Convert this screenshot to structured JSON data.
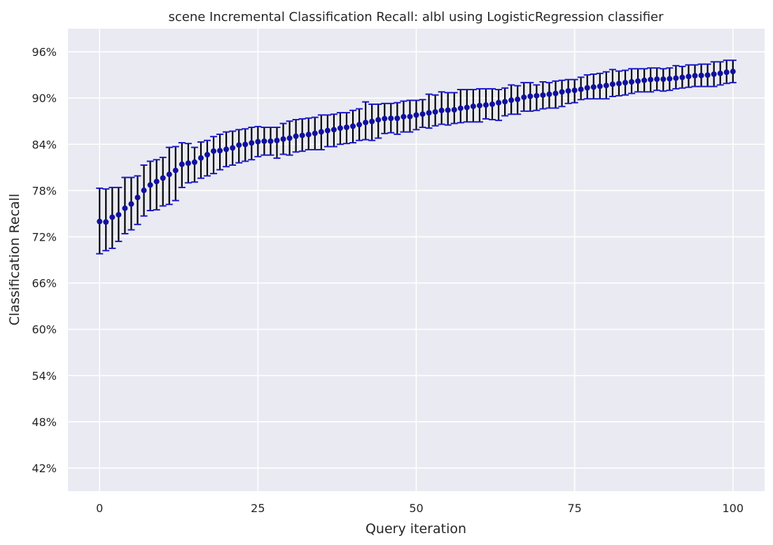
{
  "chart_data": {
    "type": "scatter",
    "title": "scene Incremental Classification Recall: albl using LogisticRegression classifier",
    "xlabel": "Query iteration",
    "ylabel": "Classification Recall",
    "x_ticks": [
      0,
      25,
      50,
      75,
      100
    ],
    "y_ticks": [
      0.42,
      0.48,
      0.54,
      0.6,
      0.66,
      0.72,
      0.78,
      0.84,
      0.9,
      0.96
    ],
    "y_tick_labels": [
      "42%",
      "48%",
      "54%",
      "60%",
      "66%",
      "72%",
      "78%",
      "84%",
      "90%",
      "96%"
    ],
    "xlim": [
      -5,
      105
    ],
    "ylim": [
      0.39,
      0.99
    ],
    "grid": true,
    "colors": {
      "background": "#eaeaf2",
      "grid": "#ffffff",
      "marker": "#1010a0",
      "errorbar": "#000000",
      "cap": "#1a1acc"
    },
    "series": [
      {
        "x": [
          0,
          1,
          2,
          3,
          4,
          5,
          6,
          7,
          8,
          9,
          10,
          11,
          12,
          13,
          14,
          15,
          16,
          17,
          18,
          19,
          20,
          21,
          22,
          23,
          24,
          25,
          26,
          27,
          28,
          29,
          30,
          31,
          32,
          33,
          34,
          35,
          36,
          37,
          38,
          39,
          40,
          41,
          42,
          43,
          44,
          45,
          46,
          47,
          48,
          49,
          50,
          51,
          52,
          53,
          54,
          55,
          56,
          57,
          58,
          59,
          60,
          61,
          62,
          63,
          64,
          65,
          66,
          67,
          68,
          69,
          70,
          71,
          72,
          73,
          74,
          75,
          76,
          77,
          78,
          79,
          80,
          81,
          82,
          83,
          84,
          85,
          86,
          87,
          88,
          89,
          90,
          91,
          92,
          93,
          94,
          95,
          96,
          97,
          98,
          99,
          100
        ],
        "values": [
          0.7398,
          0.7392,
          0.7454,
          0.7486,
          0.757,
          0.7626,
          0.771,
          0.7802,
          0.7872,
          0.7917,
          0.7962,
          0.801,
          0.8061,
          0.8141,
          0.8155,
          0.8168,
          0.8223,
          0.8265,
          0.8312,
          0.8318,
          0.8335,
          0.8353,
          0.839,
          0.8398,
          0.8418,
          0.8434,
          0.844,
          0.844,
          0.845,
          0.8468,
          0.848,
          0.8505,
          0.8515,
          0.8527,
          0.8542,
          0.8562,
          0.8578,
          0.859,
          0.861,
          0.862,
          0.8635,
          0.8655,
          0.8683,
          0.8696,
          0.8718,
          0.8733,
          0.8737,
          0.8737,
          0.8758,
          0.876,
          0.878,
          0.8792,
          0.8808,
          0.882,
          0.884,
          0.8843,
          0.8848,
          0.8868,
          0.8878,
          0.8893,
          0.8903,
          0.891,
          0.892,
          0.894,
          0.8953,
          0.8973,
          0.8983,
          0.901,
          0.9023,
          0.903,
          0.9038,
          0.905,
          0.906,
          0.908,
          0.9093,
          0.91,
          0.9113,
          0.9133,
          0.9143,
          0.9153,
          0.9163,
          0.918,
          0.9188,
          0.92,
          0.921,
          0.922,
          0.923,
          0.924,
          0.9245,
          0.9245,
          0.925,
          0.9258,
          0.9268,
          0.928,
          0.929,
          0.9293,
          0.9298,
          0.931,
          0.932,
          0.9335,
          0.9345
        ],
        "upper": [
          0.783,
          0.782,
          0.784,
          0.784,
          0.797,
          0.797,
          0.799,
          0.813,
          0.818,
          0.82,
          0.823,
          0.836,
          0.837,
          0.842,
          0.841,
          0.836,
          0.843,
          0.845,
          0.85,
          0.853,
          0.856,
          0.857,
          0.859,
          0.86,
          0.862,
          0.863,
          0.862,
          0.862,
          0.862,
          0.867,
          0.87,
          0.872,
          0.873,
          0.874,
          0.875,
          0.878,
          0.878,
          0.879,
          0.881,
          0.881,
          0.884,
          0.886,
          0.895,
          0.892,
          0.892,
          0.893,
          0.893,
          0.894,
          0.896,
          0.897,
          0.897,
          0.898,
          0.905,
          0.904,
          0.908,
          0.907,
          0.907,
          0.911,
          0.911,
          0.911,
          0.912,
          0.912,
          0.912,
          0.911,
          0.913,
          0.917,
          0.916,
          0.92,
          0.92,
          0.917,
          0.921,
          0.92,
          0.922,
          0.923,
          0.924,
          0.924,
          0.927,
          0.93,
          0.931,
          0.932,
          0.934,
          0.937,
          0.935,
          0.936,
          0.938,
          0.938,
          0.938,
          0.939,
          0.939,
          0.938,
          0.939,
          0.942,
          0.941,
          0.943,
          0.943,
          0.944,
          0.944,
          0.947,
          0.947,
          0.949,
          0.949
        ],
        "lower": [
          0.698,
          0.702,
          0.705,
          0.714,
          0.724,
          0.729,
          0.736,
          0.747,
          0.754,
          0.755,
          0.76,
          0.762,
          0.767,
          0.784,
          0.79,
          0.791,
          0.796,
          0.799,
          0.802,
          0.807,
          0.811,
          0.813,
          0.816,
          0.818,
          0.82,
          0.824,
          0.826,
          0.826,
          0.822,
          0.827,
          0.826,
          0.83,
          0.831,
          0.833,
          0.833,
          0.833,
          0.837,
          0.837,
          0.84,
          0.841,
          0.842,
          0.845,
          0.846,
          0.845,
          0.848,
          0.854,
          0.855,
          0.853,
          0.856,
          0.856,
          0.859,
          0.862,
          0.861,
          0.864,
          0.866,
          0.865,
          0.867,
          0.868,
          0.869,
          0.869,
          0.869,
          0.873,
          0.872,
          0.871,
          0.877,
          0.879,
          0.879,
          0.883,
          0.883,
          0.884,
          0.886,
          0.887,
          0.887,
          0.889,
          0.893,
          0.894,
          0.898,
          0.899,
          0.899,
          0.899,
          0.899,
          0.902,
          0.903,
          0.904,
          0.906,
          0.908,
          0.908,
          0.908,
          0.91,
          0.909,
          0.91,
          0.912,
          0.913,
          0.914,
          0.915,
          0.915,
          0.915,
          0.915,
          0.917,
          0.919,
          0.92
        ]
      }
    ]
  }
}
